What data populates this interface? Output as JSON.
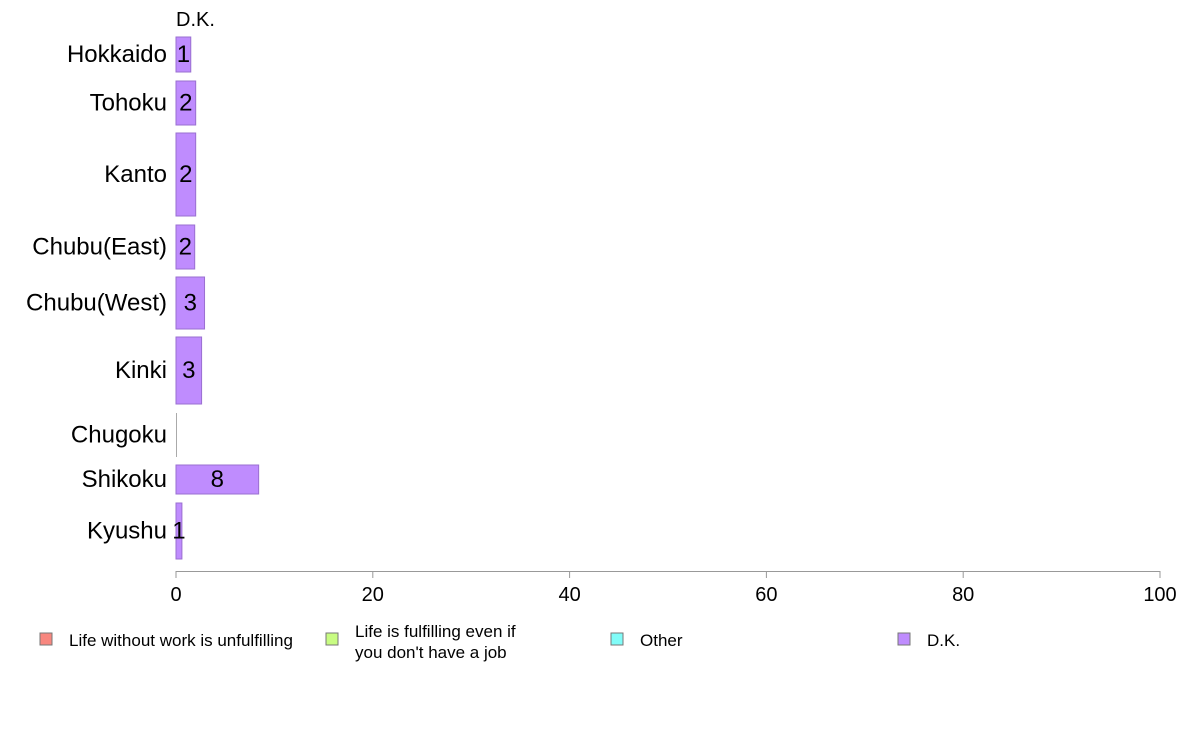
{
  "chart_data": {
    "type": "bar",
    "orientation": "horizontal",
    "panel_title": "D.K.",
    "categories": [
      "Hokkaido",
      "Tohoku",
      "Kanto",
      "Chubu(East)",
      "Chubu(West)",
      "Kinki",
      "Chugoku",
      "Shikoku",
      "Kyushu"
    ],
    "series": [
      {
        "name": "D.K.",
        "values": [
          1.5,
          2.0,
          2.0,
          1.9,
          2.9,
          2.6,
          0,
          8.4,
          0.6
        ],
        "labels": [
          "1",
          "2",
          "2",
          "2",
          "3",
          "3",
          "",
          "8",
          "1"
        ],
        "color": "#bf8cfe"
      }
    ],
    "xlim": [
      0,
      100
    ],
    "xticks": [
      "0",
      "20",
      "40",
      "60",
      "80",
      "100"
    ],
    "xlabel": "",
    "ylabel": "",
    "grid": false,
    "legend": {
      "placement": "bottom",
      "entries": [
        {
          "label_lines": [
            "Life without work is unfulfilling"
          ],
          "color": "#f8877f"
        },
        {
          "label_lines": [
            "Life is fulfilling even if",
            "you don't have a job"
          ],
          "color": "#c8fc82"
        },
        {
          "label_lines": [
            "Other"
          ],
          "color": "#81fcf8"
        },
        {
          "label_lines": [
            "D.K."
          ],
          "color": "#bf8cfe"
        }
      ]
    }
  }
}
